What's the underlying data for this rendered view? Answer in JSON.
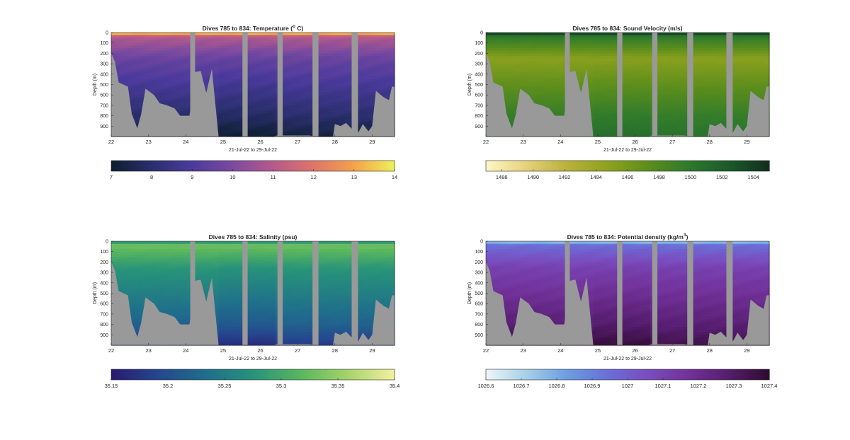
{
  "figure": {
    "background": "#ffffff",
    "mask_color": "#999999"
  },
  "chart_data": [
    {
      "type": "heatmap",
      "title_main": "Dives 785 to 834: Temperature (",
      "title_sup": "o",
      "title_end": " C)",
      "ylabel": "Depth (m)",
      "xlabel": "21-Jul-22 to 29-Jul-22",
      "xlim": [
        22,
        29.6
      ],
      "ylim": [
        0,
        1000
      ],
      "xticks": [
        "22",
        "23",
        "24",
        "25",
        "26",
        "27",
        "28",
        "29"
      ],
      "yticks": [
        "0",
        "100",
        "200",
        "300",
        "400",
        "500",
        "600",
        "700",
        "800",
        "900"
      ],
      "colorbar": {
        "min": 7,
        "max": 14,
        "ticks": [
          "7",
          "8",
          "9",
          "10",
          "11",
          "12",
          "13",
          "14"
        ],
        "colors": [
          "#0c1e2e",
          "#2a2f6e",
          "#4b3a9c",
          "#7b4aa0",
          "#b55a8a",
          "#e0746a",
          "#f4a34a",
          "#eef05a"
        ]
      },
      "field": {
        "surface": 14,
        "thermocline": 11,
        "mid": 9.6,
        "deep": 8.0,
        "bottom": 7.3
      }
    },
    {
      "type": "heatmap",
      "title_main": "Dives 785 to 834: Sound Velocity (m/s)",
      "title_sup": "",
      "title_end": "",
      "ylabel": "Depth (m)",
      "xlabel": "21-Jul-22 to 29-Jul-22",
      "xlim": [
        22,
        29.6
      ],
      "ylim": [
        0,
        1000
      ],
      "xticks": [
        "22",
        "23",
        "24",
        "25",
        "26",
        "27",
        "28",
        "29"
      ],
      "yticks": [
        "0",
        "100",
        "200",
        "300",
        "400",
        "500",
        "600",
        "700",
        "800",
        "900"
      ],
      "colorbar": {
        "min": 1487,
        "max": 1505,
        "ticks": [
          "1488",
          "1490",
          "1492",
          "1494",
          "1496",
          "1498",
          "1500",
          "1502",
          "1504"
        ],
        "colors": [
          "#fdf6c8",
          "#e6d27a",
          "#b9b13a",
          "#8fa21e",
          "#5c8e1c",
          "#2f7a2c",
          "#1a5a2a",
          "#122e1c"
        ]
      },
      "field": {
        "surface": 1505,
        "thermocline": 1500,
        "mid": 1495,
        "deep": 1499.5,
        "bottom": 1500.5
      }
    },
    {
      "type": "heatmap",
      "title_main": "Dives 785 to 834: Salinity (psu)",
      "title_sup": "",
      "title_end": "",
      "ylabel": "Depth (m)",
      "xlabel": "21-Jul-22 to 29-Jul-22",
      "xlim": [
        22,
        29.6
      ],
      "ylim": [
        0,
        1000
      ],
      "xticks": [
        "22",
        "23",
        "24",
        "25",
        "26",
        "27",
        "28",
        "29"
      ],
      "yticks": [
        "0",
        "100",
        "200",
        "300",
        "400",
        "500",
        "600",
        "700",
        "800",
        "900"
      ],
      "colorbar": {
        "min": 35.15,
        "max": 35.4,
        "ticks": [
          "35.15",
          "35.2",
          "35.25",
          "35.3",
          "35.35",
          "35.4"
        ],
        "colors": [
          "#2a1a6e",
          "#25478f",
          "#1f6e8c",
          "#27927a",
          "#58b65e",
          "#a5d36a",
          "#f3f0a0"
        ]
      },
      "field": {
        "surface": 35.26,
        "thermocline": 35.33,
        "mid": 35.28,
        "deep": 35.22,
        "bottom": 35.18
      }
    },
    {
      "type": "heatmap",
      "title_main": "Dives 785 to 834: Potential density (kg/m",
      "title_sup": "3",
      "title_end": ")",
      "ylabel": "Depth (m)",
      "xlabel": "21-Jul-22 to 29-Jul-22",
      "xlim": [
        22,
        29.6
      ],
      "ylim": [
        0,
        1000
      ],
      "xticks": [
        "22",
        "23",
        "24",
        "25",
        "26",
        "27",
        "28",
        "29"
      ],
      "yticks": [
        "0",
        "100",
        "200",
        "300",
        "400",
        "500",
        "600",
        "700",
        "800",
        "900"
      ],
      "colorbar": {
        "min": 1026.6,
        "max": 1027.4,
        "ticks": [
          "1026.6",
          "1026.7",
          "1026.8",
          "1026.9",
          "1027",
          "1027.1",
          "1027.2",
          "1027.3",
          "1027.4"
        ],
        "colors": [
          "#eef6f8",
          "#a6cfe8",
          "#6b9ee0",
          "#6a6fd8",
          "#7a4cbf",
          "#72329a",
          "#551d6e",
          "#300a30"
        ]
      },
      "field": {
        "surface": 1026.7,
        "thermocline": 1026.95,
        "mid": 1027.1,
        "deep": 1027.27,
        "bottom": 1027.35
      }
    }
  ]
}
